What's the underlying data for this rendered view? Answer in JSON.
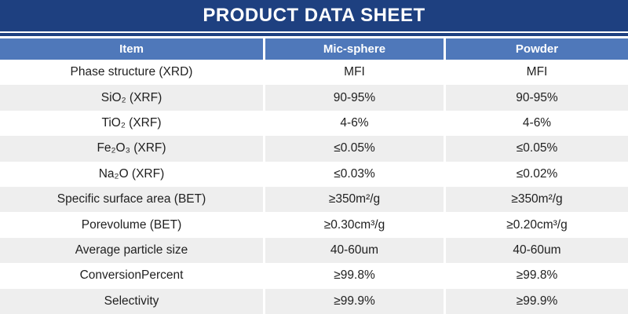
{
  "title": "PRODUCT DATA SHEET",
  "table": {
    "headers": [
      "Item",
      "Mic-sphere",
      "Powder"
    ],
    "rows": [
      [
        "Phase structure (XRD)",
        "MFI",
        "MFI"
      ],
      [
        "SiO₂ (XRF)",
        "90-95%",
        "90-95%"
      ],
      [
        "TiO₂ (XRF)",
        "4-6%",
        "4-6%"
      ],
      [
        "Fe₂O₃ (XRF)",
        "≤0.05%",
        "≤0.05%"
      ],
      [
        "Na₂O (XRF)",
        "≤0.03%",
        "≤0.02%"
      ],
      [
        "Specific surface area (BET)",
        "≥350m²/g",
        "≥350m²/g"
      ],
      [
        "Porevolume (BET)",
        "≥0.30cm³/g",
        "≥0.20cm³/g"
      ],
      [
        "Average particle size",
        "40-60um",
        "40-60um"
      ],
      [
        "ConversionPercent",
        "≥99.8%",
        "≥99.8%"
      ],
      [
        "Selectivity",
        "≥99.9%",
        "≥99.9%"
      ]
    ]
  },
  "colors": {
    "title_bar": "#1e4080",
    "header_row": "#4f78ba",
    "alt_row": "#eeeeee",
    "body_text": "#1f1f1f",
    "header_text": "#ffffff"
  }
}
